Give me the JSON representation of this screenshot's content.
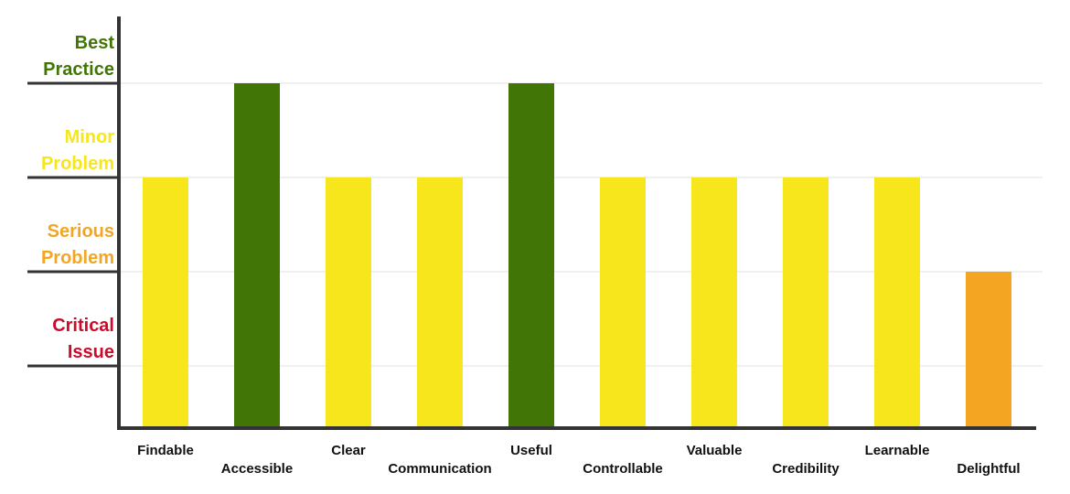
{
  "chart_data": {
    "type": "bar",
    "categories": [
      "Findable",
      "Accessible",
      "Clear",
      "Communication",
      "Useful",
      "Controllable",
      "Valuable",
      "Credibility",
      "Learnable",
      "Delightful"
    ],
    "values": [
      3,
      4,
      3,
      3,
      4,
      3,
      3,
      3,
      3,
      2
    ],
    "ylim": [
      0,
      4.6
    ],
    "levels": [
      {
        "value": 1,
        "lines": [
          "Critical",
          "Issue"
        ],
        "color": "#cc0a2b"
      },
      {
        "value": 2,
        "lines": [
          "Serious",
          "Problem"
        ],
        "color": "#f4a623"
      },
      {
        "value": 3,
        "lines": [
          "Minor",
          "Problem"
        ],
        "color": "#f8e61c"
      },
      {
        "value": 4,
        "lines": [
          "Best",
          "Practice"
        ],
        "color": "#417505"
      }
    ],
    "grid": true,
    "legend": "none"
  }
}
